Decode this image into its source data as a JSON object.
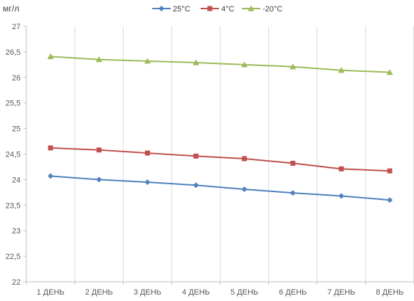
{
  "chart_data": {
    "type": "line",
    "ylabel": "мг/л",
    "categories": [
      "1 ДЕНЬ",
      "2 ДЕНЬ",
      "3 ДЕНЬ",
      "4 ДЕНЬ",
      "5 ДЕНЬ",
      "6 ДЕНЬ",
      "7 ДЕНЬ",
      "8 ДЕНЬ"
    ],
    "ylim": [
      22,
      27
    ],
    "yticks": [
      22,
      22.5,
      23,
      23.5,
      24,
      24.5,
      25,
      25.5,
      26,
      26.5,
      27
    ],
    "ytick_labels": [
      "22",
      "22,5",
      "23",
      "23,5",
      "24",
      "24,5",
      "25",
      "25,5",
      "26",
      "26,5",
      "27"
    ],
    "grid": "vertical",
    "legend_position": "top",
    "series": [
      {
        "name": "25°С",
        "color": "#4f81bd",
        "marker": "diamond",
        "values": [
          24.07,
          24.0,
          23.95,
          23.89,
          23.81,
          23.74,
          23.68,
          23.6
        ]
      },
      {
        "name": "4°С",
        "color": "#c0504d",
        "marker": "square",
        "values": [
          24.62,
          24.58,
          24.52,
          24.46,
          24.41,
          24.32,
          24.21,
          24.17
        ]
      },
      {
        "name": "-20°С",
        "color": "#9bbb59",
        "marker": "triangle",
        "values": [
          26.41,
          26.35,
          26.32,
          26.29,
          26.25,
          26.21,
          26.14,
          26.1
        ]
      }
    ]
  }
}
